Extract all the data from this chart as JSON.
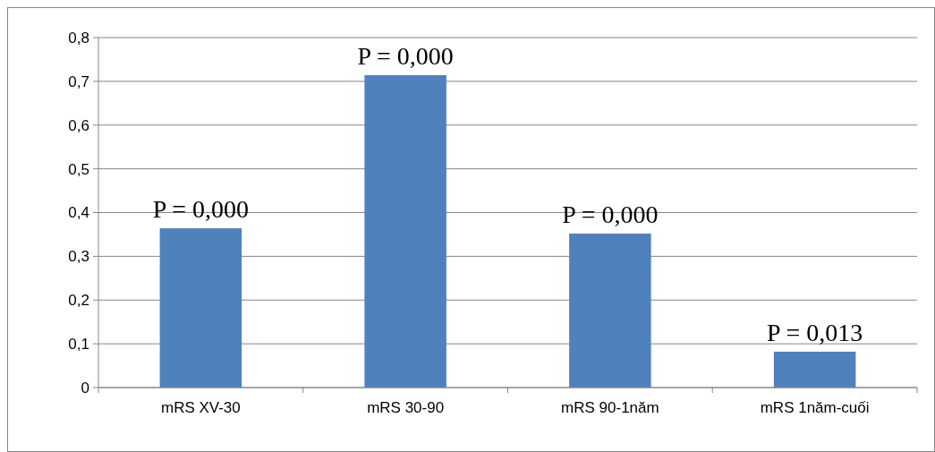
{
  "chart_data": {
    "type": "bar",
    "categories": [
      "mRS XV-30",
      "mRS 30-90",
      "mRS 90-1năm",
      "mRS 1năm-cuối"
    ],
    "values": [
      0.364,
      0.714,
      0.352,
      0.082
    ],
    "color": "#4f81bd",
    "ylim": [
      0,
      0.8
    ],
    "yticks": [
      {
        "value": 0,
        "label": "0"
      },
      {
        "value": 0.1,
        "label": "0,1"
      },
      {
        "value": 0.2,
        "label": "0,2"
      },
      {
        "value": 0.3,
        "label": "0,3"
      },
      {
        "value": 0.4,
        "label": "0,4"
      },
      {
        "value": 0.5,
        "label": "0,5"
      },
      {
        "value": 0.6,
        "label": "0,6"
      },
      {
        "value": 0.7,
        "label": "0,7"
      },
      {
        "value": 0.8,
        "label": "0,8"
      }
    ],
    "grid": "y",
    "annotations": [
      {
        "text": "P = 0,000",
        "x": "mRS XV-30",
        "y": 0.364
      },
      {
        "text": "P = 0,000",
        "x": "mRS 30-90",
        "y": 0.714
      },
      {
        "text": "P = 0,000",
        "x": "mRS 90-1năm",
        "y": 0.352
      },
      {
        "text": "P = 0,013",
        "x": "mRS 1năm-cuối",
        "y": 0.082
      }
    ]
  }
}
